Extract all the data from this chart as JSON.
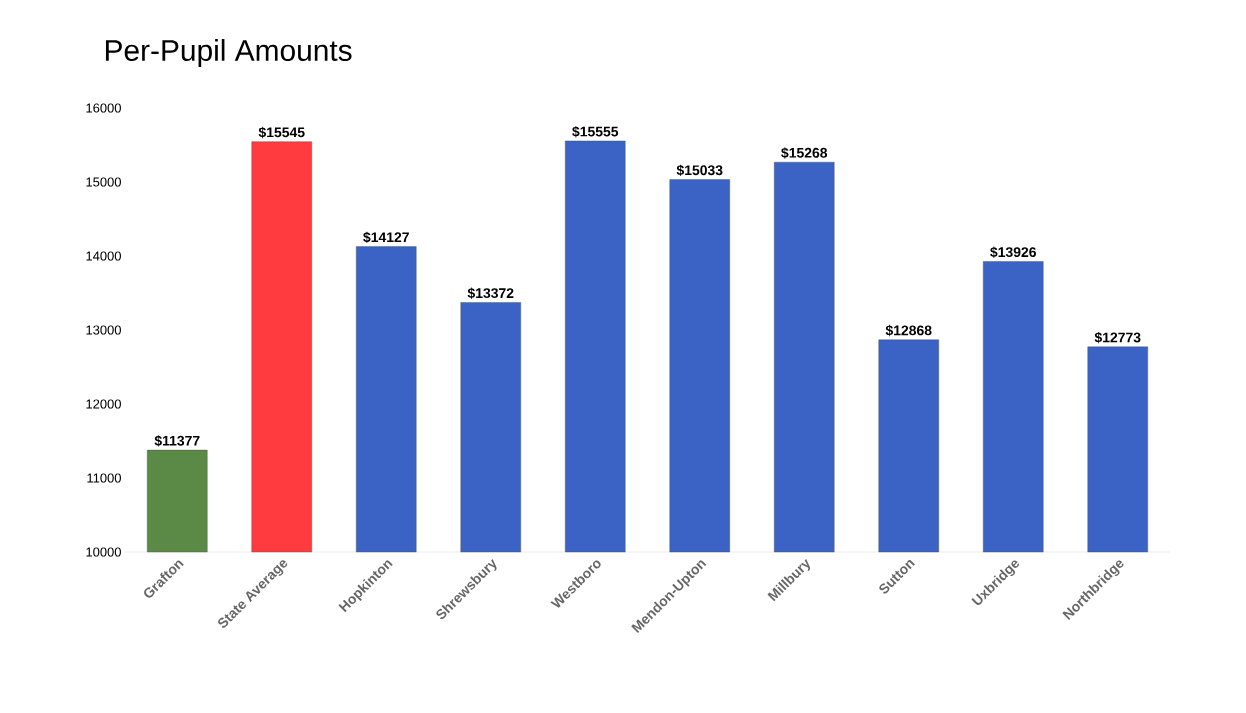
{
  "chart_data": {
    "type": "bar",
    "title": "Per-Pupil Amounts",
    "categories": [
      "Grafton",
      "State Average",
      "Hopkinton",
      "Shrewsbury",
      "Westboro",
      "Mendon-Upton",
      "Millbury",
      "Sutton",
      "Uxbridge",
      "Northbridge"
    ],
    "values": [
      11377,
      15545,
      14127,
      13372,
      15555,
      15033,
      15268,
      12868,
      13926,
      12773
    ],
    "value_labels": [
      "$11377",
      "$15545",
      "$14127",
      "$13372",
      "$15555",
      "$15033",
      "$15268",
      "$12868",
      "$13926",
      "$12773"
    ],
    "colors": [
      "#5b8a47",
      "#ff3b3f",
      "#3a63c5",
      "#3a63c5",
      "#3a63c5",
      "#3a63c5",
      "#3a63c5",
      "#3a63c5",
      "#3a63c5",
      "#3a63c5"
    ],
    "ylim": [
      10000,
      16000
    ],
    "yticks": [
      10000,
      11000,
      12000,
      13000,
      14000,
      15000,
      16000
    ]
  }
}
